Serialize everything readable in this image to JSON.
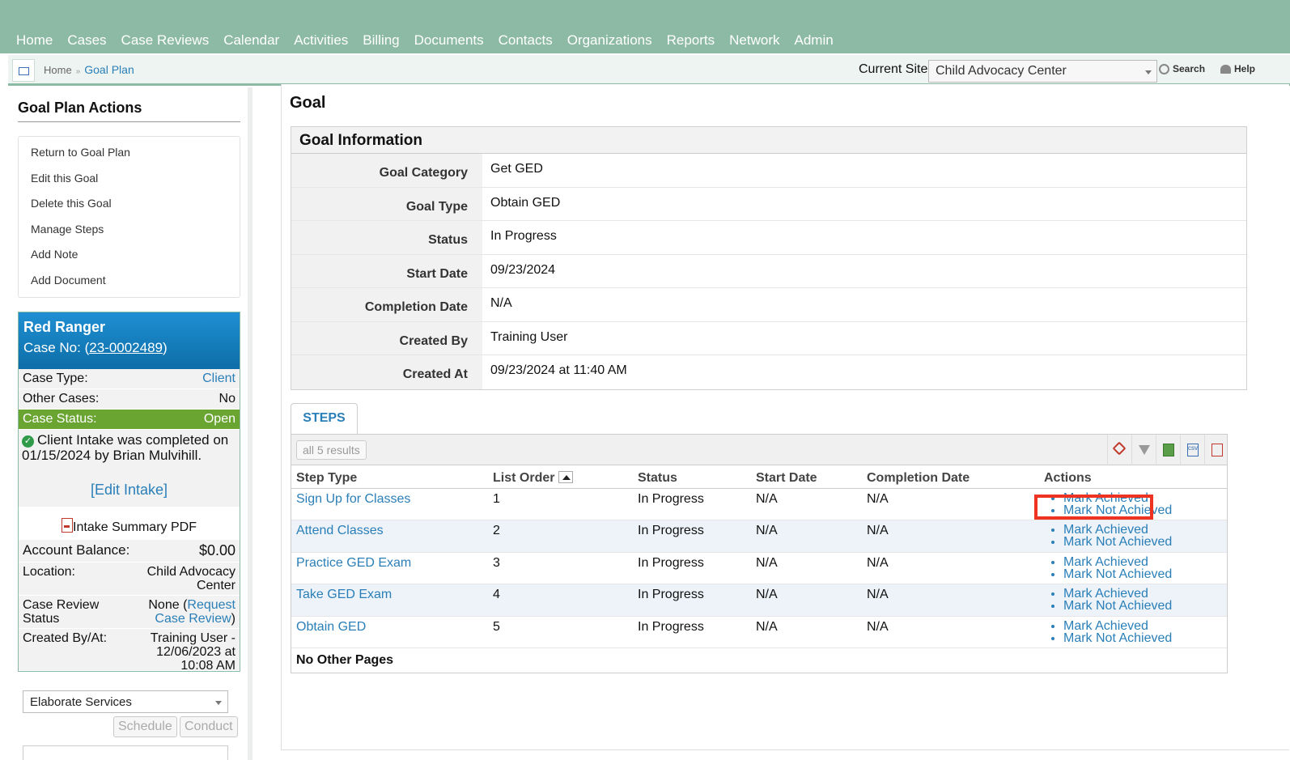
{
  "nav": {
    "items": [
      "Home",
      "Cases",
      "Case Reviews",
      "Calendar",
      "Activities",
      "Billing",
      "Documents",
      "Contacts",
      "Organizations",
      "Reports",
      "Network",
      "Admin"
    ]
  },
  "breadcrumb": {
    "home": "Home",
    "current": "Goal Plan"
  },
  "site": {
    "label": "Current Site",
    "value": "Child Advocacy Center"
  },
  "toplinks": {
    "search": "Search",
    "help": "Help"
  },
  "sidebar": {
    "title": "Goal Plan Actions",
    "actions": [
      "Return to Goal Plan",
      "Edit this Goal",
      "Delete this Goal",
      "Manage Steps",
      "Add Note",
      "Add Document"
    ]
  },
  "case": {
    "name": "Red Ranger",
    "case_no_label": "Case No: (",
    "case_no": "23-0002489",
    "case_no_close": ")",
    "case_type_label": "Case Type:",
    "case_type": "Client",
    "other_cases_label": "Other Cases:",
    "other_cases": "No",
    "status_label": "Case Status:",
    "status": "Open",
    "intake_msg": "Client Intake was completed on 01/15/2024 by Brian Mulvihill.",
    "edit_intake": "[Edit Intake]",
    "intake_pdf": "Intake Summary PDF",
    "balance_label": "Account Balance:",
    "balance": "$0.00",
    "location_label": "Location:",
    "location": "Child Advocacy Center",
    "review_label": "Case Review Status",
    "review_none": "None (",
    "review_link": "Request Case Review",
    "review_close": ")",
    "created_label": "Created By/At:",
    "created": "Training User - 12/06/2023 at 10:08 AM",
    "service": "Elaborate Services",
    "schedule": "Schedule",
    "conduct": "Conduct"
  },
  "main": {
    "title": "Goal",
    "info_title": "Goal Information",
    "info": [
      {
        "label": "Goal Category",
        "value": "Get GED"
      },
      {
        "label": "Goal Type",
        "value": "Obtain GED"
      },
      {
        "label": "Status",
        "value": "In Progress"
      },
      {
        "label": "Start Date",
        "value": "09/23/2024"
      },
      {
        "label": "Completion Date",
        "value": "N/A"
      },
      {
        "label": "Created By",
        "value": "Training User"
      },
      {
        "label": "Created At",
        "value": "09/23/2024 at 11:40 AM"
      }
    ],
    "tab": "STEPS",
    "results": "all 5 results",
    "columns": [
      "Step Type",
      "List Order",
      "Status",
      "Start Date",
      "Completion Date",
      "Actions"
    ],
    "rows": [
      {
        "step": "Sign Up for Classes",
        "order": "1",
        "status": "In Progress",
        "start": "N/A",
        "completion": "N/A"
      },
      {
        "step": "Attend Classes",
        "order": "2",
        "status": "In Progress",
        "start": "N/A",
        "completion": "N/A"
      },
      {
        "step": "Practice GED Exam",
        "order": "3",
        "status": "In Progress",
        "start": "N/A",
        "completion": "N/A"
      },
      {
        "step": "Take GED Exam",
        "order": "4",
        "status": "In Progress",
        "start": "N/A",
        "completion": "N/A"
      },
      {
        "step": "Obtain GED",
        "order": "5",
        "status": "In Progress",
        "start": "N/A",
        "completion": "N/A"
      }
    ],
    "action_achieved": "Mark Achieved",
    "action_not_achieved": "Mark Not Achieved",
    "footer": "No Other Pages",
    "csv_icon_text": "csv"
  },
  "colors": {
    "nav_bg": "#8dbaa4",
    "link": "#2a7fb8",
    "case_head": "#0d6ea8",
    "status_green": "#6aa532",
    "highlight": "#ee3322"
  }
}
